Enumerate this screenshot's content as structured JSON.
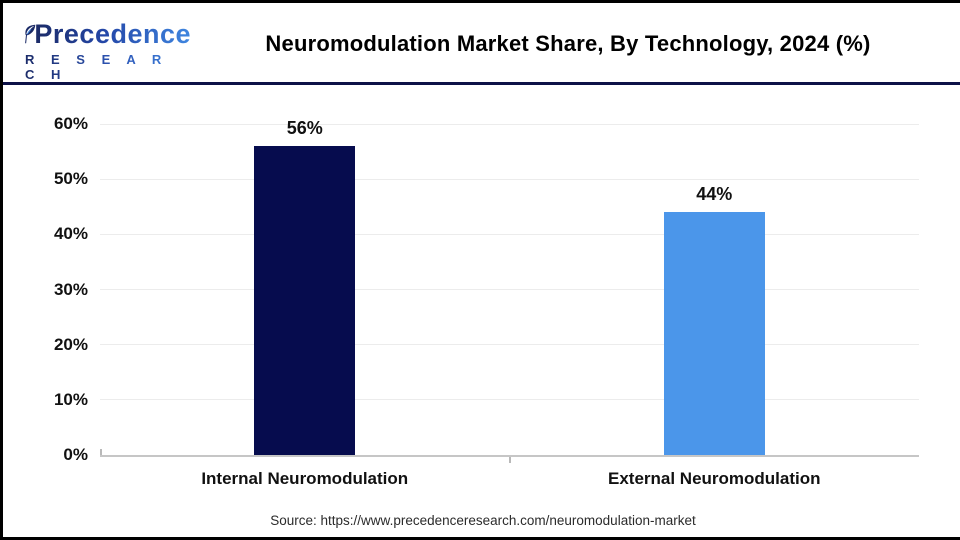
{
  "logo": {
    "line1": "Precedence",
    "line2": "R E S E A R C H"
  },
  "header": {
    "title": "Neuromodulation Market Share, By Technology, 2024 (%)"
  },
  "chart_data": {
    "type": "bar",
    "title": "Neuromodulation Market Share, By Technology, 2024 (%)",
    "categories": [
      "Internal Neuromodulation",
      "External Neuromodulation"
    ],
    "values": [
      56,
      44
    ],
    "value_labels": [
      "56%",
      "44%"
    ],
    "bar_colors": [
      "#060c4e",
      "#4b96ea"
    ],
    "xlabel": "",
    "ylabel": "",
    "ylim": [
      0,
      60
    ],
    "ytick_step": 10,
    "ytick_labels": [
      "0%",
      "10%",
      "20%",
      "30%",
      "40%",
      "50%",
      "60%"
    ],
    "grid": "horizontal",
    "legend": "none"
  },
  "source": {
    "text": "Source: https://www.precedenceresearch.com/neuromodulation-market"
  },
  "colors": {
    "internal_bar": "#060c4e",
    "external_bar": "#4b96ea",
    "header_rule": "#0d1147",
    "gridline": "#ececec",
    "axis": "#c6c6c6",
    "logo_navy": "#1b2a66",
    "logo_blue": "#3f86e0"
  }
}
